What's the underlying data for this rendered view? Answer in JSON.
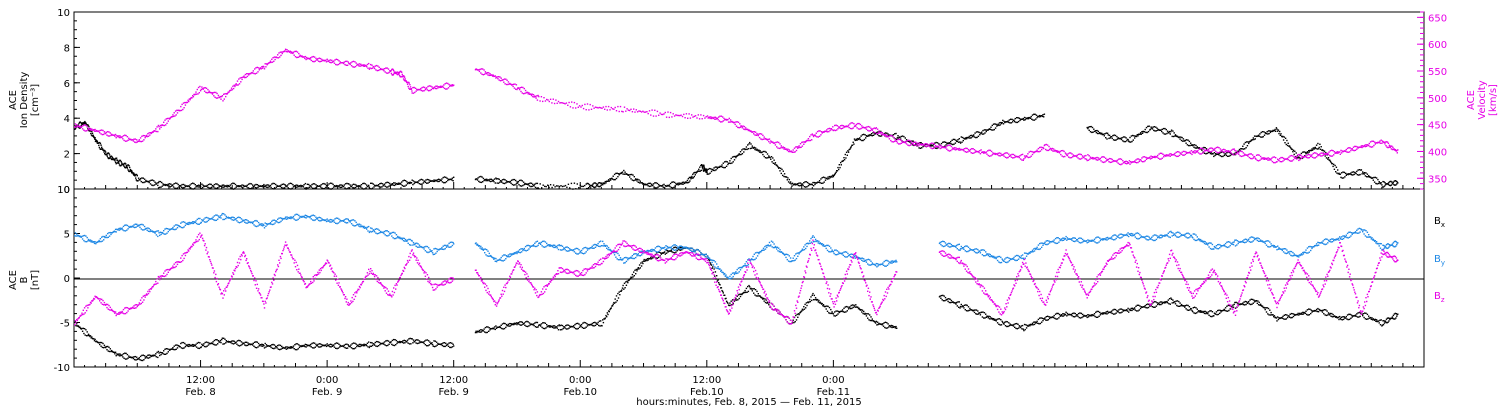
{
  "chart_data": [
    {
      "type": "scatter",
      "panel": "top",
      "ylabel_left": [
        "ACE",
        "Ion Density",
        "[cm⁻³]"
      ],
      "ylabel_right": [
        "ACE",
        "Velocity",
        "[km/s]"
      ],
      "ylim_left": [
        0,
        10
      ],
      "ylim_right": [
        330,
        660
      ],
      "yticks_left": [
        "0",
        "2",
        "4",
        "6",
        "8",
        "10"
      ],
      "yticks_right": [
        "350",
        "400",
        "450",
        "500",
        "550",
        "600",
        "650"
      ],
      "colors": {
        "density": "#000000",
        "velocity": "#e600e6"
      },
      "series": [
        {
          "key": "density",
          "axis": "left",
          "color": "#000000",
          "x": [
            0,
            1,
            2,
            3,
            4,
            5,
            6,
            8,
            10,
            12,
            14,
            16,
            18,
            20,
            22,
            24,
            26,
            28,
            30,
            32,
            34,
            36,
            36.5,
            38,
            40,
            42,
            44,
            48.5,
            50,
            52,
            54,
            56,
            58,
            59.5,
            60,
            62,
            64,
            66,
            68,
            70,
            72,
            74,
            76,
            78,
            80,
            82,
            84,
            86,
            88,
            90,
            92,
            94,
            96,
            98,
            100,
            102,
            104,
            106,
            108,
            110,
            112,
            114,
            116,
            118,
            120,
            122,
            124,
            125.5
          ],
          "y": [
            3.5,
            3.8,
            2.8,
            2.0,
            1.6,
            1.3,
            0.6,
            0.3,
            0.2,
            0.2,
            0.2,
            0.2,
            0.2,
            0.2,
            0.2,
            0.2,
            0.2,
            0.2,
            0.3,
            0.4,
            0.5,
            0.6,
            null,
            0.6,
            0.5,
            0.4,
            0.2,
            0.2,
            0.3,
            1.0,
            0.3,
            0.2,
            0.4,
            1.3,
            1.0,
            1.5,
            2.5,
            1.8,
            0.3,
            0.3,
            0.8,
            2.8,
            3.2,
            3.0,
            2.5,
            2.5,
            2.8,
            3.2,
            3.8,
            4.0,
            4.2,
            null,
            3.5,
            3.0,
            2.8,
            3.5,
            3.2,
            2.5,
            2.0,
            2.0,
            3.0,
            3.4,
            1.8,
            2.5,
            0.8,
            1.0,
            0.3,
            0.4
          ]
        },
        {
          "key": "velocity",
          "axis": "right",
          "color": "#e600e6",
          "x": [
            0,
            2,
            4,
            6,
            8,
            10,
            12,
            14,
            16,
            18,
            20,
            22,
            24,
            26,
            28,
            30,
            31,
            32,
            34,
            36,
            36.5,
            38,
            40,
            42,
            44,
            48,
            52,
            56,
            60,
            62,
            64,
            66,
            68,
            70,
            72,
            74,
            76,
            78,
            80,
            82,
            84,
            86,
            88,
            90,
            92,
            94,
            96,
            98,
            100,
            102,
            104,
            106,
            108,
            110,
            112,
            114,
            116,
            118,
            120,
            122,
            124,
            125.5
          ],
          "y": [
            450,
            440,
            430,
            420,
            445,
            480,
            520,
            500,
            540,
            560,
            590,
            575,
            570,
            565,
            560,
            550,
            545,
            515,
            520,
            525,
            null,
            555,
            540,
            520,
            500,
            485,
            480,
            470,
            465,
            460,
            440,
            420,
            400,
            430,
            445,
            450,
            440,
            420,
            415,
            410,
            405,
            400,
            395,
            390,
            410,
            395,
            390,
            385,
            380,
            390,
            395,
            400,
            405,
            400,
            390,
            385,
            390,
            395,
            400,
            410,
            420,
            400
          ]
        }
      ]
    },
    {
      "type": "scatter",
      "panel": "bottom",
      "ylabel_left": [
        "ACE",
        "B",
        "[nT]"
      ],
      "ylim": [
        -10,
        10
      ],
      "yticks_left": [
        "-10",
        "-5",
        "0",
        "5",
        "10"
      ],
      "legend": [
        {
          "label": "B",
          "sub": "x",
          "color": "#000000"
        },
        {
          "label": "B",
          "sub": "y",
          "color": "#1e88e5"
        },
        {
          "label": "B",
          "sub": "z",
          "color": "#e600e6"
        }
      ],
      "series": [
        {
          "key": "Bx",
          "color": "#000000",
          "x": [
            0,
            2,
            4,
            6,
            8,
            10,
            12,
            14,
            16,
            18,
            20,
            22,
            24,
            26,
            28,
            30,
            32,
            34,
            36,
            36.5,
            38,
            40,
            42,
            44,
            46,
            48,
            50,
            52,
            54,
            56,
            58,
            60,
            62,
            64,
            66,
            68,
            70,
            72,
            74,
            76,
            78,
            80,
            82,
            84,
            86,
            88,
            90,
            92,
            94,
            96,
            98,
            100,
            102,
            104,
            106,
            108,
            110,
            112,
            114,
            116,
            118,
            120,
            122,
            124,
            125.5
          ],
          "y": [
            -5,
            -7,
            -8.5,
            -9,
            -8.5,
            -7.5,
            -7.5,
            -7,
            -7.3,
            -7.5,
            -7.8,
            -7.5,
            -7.5,
            -7.6,
            -7.4,
            -7.2,
            -7.0,
            -7.3,
            -7.5,
            null,
            -6,
            -5.5,
            -5,
            -5.2,
            -5.5,
            -5.3,
            -5,
            -1,
            2,
            3,
            3.5,
            2.5,
            -3,
            -1,
            -3,
            -5,
            -2,
            -4,
            -3,
            -5,
            -5.5,
            null,
            -2,
            -3,
            -4,
            -5,
            -5.5,
            -4.5,
            -4,
            -4.2,
            -3.8,
            -3.5,
            -3,
            -2.5,
            -3.5,
            -4,
            -3,
            -2.5,
            -4.5,
            -4,
            -3.5,
            -4.5,
            -4,
            -5,
            -4
          ]
        },
        {
          "key": "By",
          "color": "#1e88e5",
          "x": [
            0,
            2,
            4,
            6,
            8,
            10,
            12,
            14,
            16,
            18,
            20,
            22,
            24,
            26,
            28,
            30,
            32,
            34,
            36,
            36.5,
            38,
            40,
            42,
            44,
            46,
            48,
            50,
            52,
            54,
            56,
            58,
            60,
            62,
            64,
            66,
            68,
            70,
            72,
            74,
            76,
            78,
            80,
            82,
            84,
            86,
            88,
            90,
            92,
            94,
            96,
            98,
            100,
            102,
            104,
            106,
            108,
            110,
            112,
            114,
            116,
            118,
            120,
            122,
            124,
            125.5
          ],
          "y": [
            5,
            4,
            5.5,
            6,
            5,
            6,
            6.5,
            7,
            6.5,
            6,
            6.8,
            7,
            6.5,
            6.5,
            5.5,
            5,
            4,
            3,
            4,
            null,
            4,
            2,
            3,
            4,
            3.5,
            3,
            4,
            2,
            3,
            3.5,
            3.5,
            2.5,
            0,
            2,
            4,
            2,
            4.5,
            3,
            2.5,
            1.5,
            2,
            null,
            4,
            3.5,
            3,
            2,
            2.5,
            4,
            4.5,
            4.2,
            4.5,
            5,
            4.5,
            5,
            4.8,
            3.5,
            4,
            4.5,
            3.5,
            2.5,
            4,
            4.5,
            5.5,
            3.5,
            4
          ]
        },
        {
          "key": "Bz",
          "color": "#e600e6",
          "x": [
            0,
            2,
            4,
            6,
            8,
            10,
            12,
            14,
            16,
            18,
            20,
            22,
            24,
            26,
            28,
            30,
            32,
            34,
            36,
            36.5,
            38,
            40,
            42,
            44,
            46,
            48,
            50,
            52,
            54,
            56,
            58,
            60,
            62,
            64,
            66,
            68,
            70,
            72,
            74,
            76,
            78,
            80,
            82,
            84,
            86,
            88,
            90,
            92,
            94,
            96,
            98,
            100,
            102,
            104,
            106,
            108,
            110,
            112,
            114,
            116,
            118,
            120,
            122,
            124,
            125.5
          ],
          "y": [
            -5,
            -2,
            -4,
            -3,
            0,
            2,
            5,
            -2,
            3,
            -3,
            4,
            -1,
            2,
            -3,
            1,
            -2,
            3,
            -1,
            0,
            null,
            1,
            -3,
            2,
            -2,
            1,
            0.5,
            2,
            4,
            3,
            2,
            3,
            2,
            -4,
            2,
            -3,
            -5,
            4,
            -3,
            3,
            -4,
            1,
            null,
            3,
            2,
            -1,
            -4,
            2,
            -3,
            3,
            -2,
            2,
            4,
            -3,
            3,
            -2,
            1,
            -4,
            3,
            -3,
            2,
            -2,
            4,
            -4,
            3,
            2
          ]
        }
      ]
    }
  ],
  "x_axis": {
    "xlim": [
      0,
      128
    ],
    "xlabel": "hours:minutes, Feb.  8, 2015 — Feb. 11, 2015",
    "ticks": [
      {
        "x": 12,
        "time": "12:00",
        "date": "Feb. 8"
      },
      {
        "x": 24,
        "time": "0:00",
        "date": "Feb. 9"
      },
      {
        "x": 36,
        "time": "12:00",
        "date": "Feb. 9"
      },
      {
        "x": 48,
        "time": "0:00",
        "date": "Feb.10"
      },
      {
        "x": 60,
        "time": "12:00",
        "date": "Feb.10"
      },
      {
        "x": 72,
        "time": "0:00",
        "date": "Feb.11"
      }
    ]
  }
}
